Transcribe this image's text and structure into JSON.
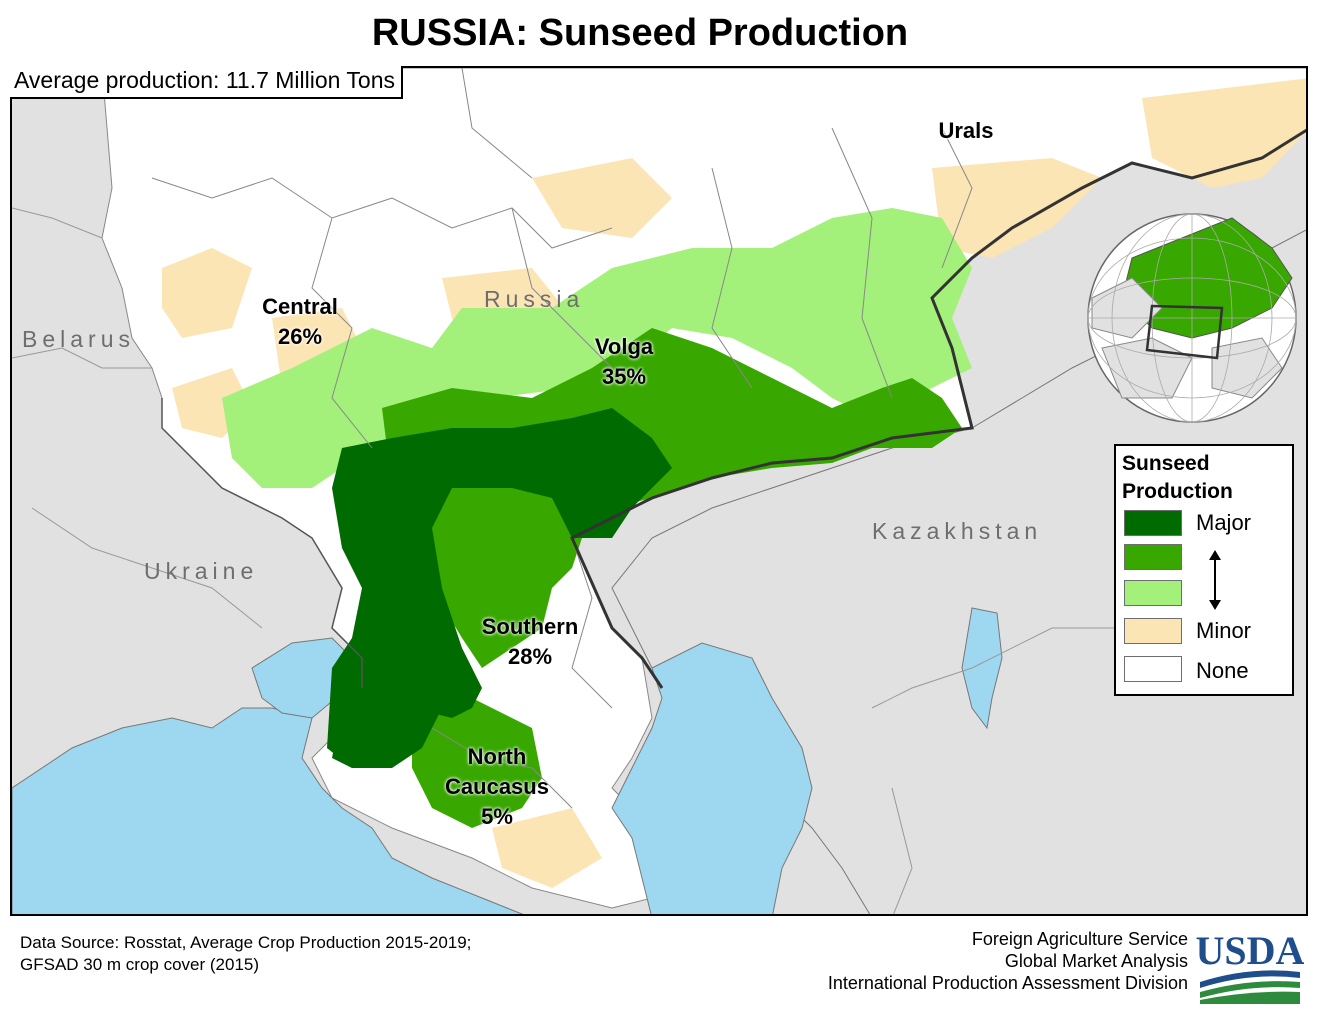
{
  "title": "RUSSIA:  Sunseed Production",
  "average_production": "Average production: 11.7 Million Tons",
  "countries": {
    "belarus": "Belarus",
    "russia": "Russia",
    "ukraine": "Ukraine",
    "kazakhstan": "Kazakhstan"
  },
  "regions": [
    {
      "name": "Central",
      "share": "26%"
    },
    {
      "name": "Volga",
      "share": "35%"
    },
    {
      "name": "Southern",
      "share": "28%"
    },
    {
      "name": "North",
      "name2": "Caucasus",
      "share": "5%"
    },
    {
      "name": "Urals"
    }
  ],
  "legend": {
    "title_line1": "Sunseed",
    "title_line2": "Production",
    "classes": [
      {
        "label": "Major",
        "color": "#006b00"
      },
      {
        "label": "",
        "color": "#38a800"
      },
      {
        "label": "",
        "color": "#a3f07a"
      },
      {
        "label": "Minor",
        "color": "#fce5b4"
      },
      {
        "label": "None",
        "color": "#ffffff"
      }
    ]
  },
  "colors": {
    "water": "#9ed8f0",
    "other_country": "#e1e1e1",
    "major": "#006b00",
    "moderate": "#38a800",
    "low": "#a3f07a",
    "minor": "#fce5b4",
    "none": "#ffffff"
  },
  "source": {
    "line1": "Data Source: Rosstat, Average Crop Production 2015-2019;",
    "line2": "GFSAD 30 m crop cover (2015)"
  },
  "agency": {
    "line1": "Foreign Agriculture Service",
    "line2": "Global Market Analysis",
    "line3": "International Production Assessment Division"
  },
  "logo_text": "USDA"
}
